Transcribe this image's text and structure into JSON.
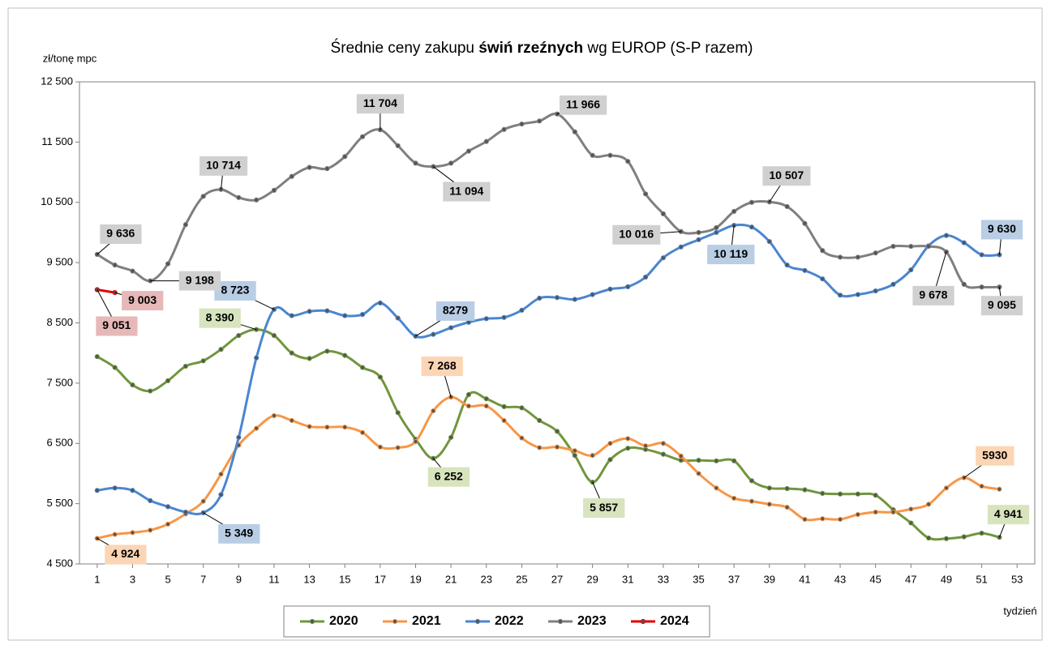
{
  "chart_data": {
    "type": "line",
    "title_parts": [
      {
        "text": "Średnie ceny zakupu ",
        "bold": false
      },
      {
        "text": "świń rzeźnych",
        "bold": true
      },
      {
        "text": " wg EUROP (S-P razem)",
        "bold": false
      }
    ],
    "y_label": "zł/tonę mpc",
    "x_label": "tydzień",
    "x": [
      1,
      2,
      3,
      4,
      5,
      6,
      7,
      8,
      9,
      10,
      11,
      12,
      13,
      14,
      15,
      16,
      17,
      18,
      19,
      20,
      21,
      22,
      23,
      24,
      25,
      26,
      27,
      28,
      29,
      30,
      31,
      32,
      33,
      34,
      35,
      36,
      37,
      38,
      39,
      40,
      41,
      42,
      43,
      44,
      45,
      46,
      47,
      48,
      49,
      50,
      51,
      52
    ],
    "xlim": [
      0,
      54
    ],
    "xticks": [
      1,
      3,
      5,
      7,
      9,
      11,
      13,
      15,
      17,
      19,
      21,
      23,
      25,
      27,
      29,
      31,
      33,
      35,
      37,
      39,
      41,
      43,
      45,
      47,
      49,
      51,
      53
    ],
    "ylim": [
      4500,
      12500
    ],
    "yticks": [
      {
        "value": 4500,
        "label": "4 500"
      },
      {
        "value": 5500,
        "label": "5 500"
      },
      {
        "value": 6500,
        "label": "6 500"
      },
      {
        "value": 7500,
        "label": "7 500"
      },
      {
        "value": 8500,
        "label": "8 500"
      },
      {
        "value": 9500,
        "label": "9 500"
      },
      {
        "value": 10500,
        "label": "10 500"
      },
      {
        "value": 11500,
        "label": "11 500"
      },
      {
        "value": 12500,
        "label": "12 500"
      }
    ],
    "grid": false,
    "legend": "bottom",
    "series": [
      {
        "name": "2020",
        "color": "#70963c",
        "label_color": "#d7e4bd",
        "values": [
          7940,
          7760,
          7470,
          7370,
          7540,
          7780,
          7870,
          8060,
          8290,
          8390,
          8290,
          8000,
          7910,
          8030,
          7960,
          7760,
          7600,
          7010,
          6570,
          6252,
          6600,
          7310,
          7240,
          7110,
          7090,
          6880,
          6700,
          6300,
          5857,
          6230,
          6420,
          6400,
          6320,
          6220,
          6220,
          6210,
          6210,
          5880,
          5760,
          5750,
          5730,
          5670,
          5660,
          5660,
          5640,
          5400,
          5180,
          4930,
          4920,
          4950,
          5010,
          4941
        ],
        "value_labels": [
          null,
          null,
          null,
          null,
          null,
          null,
          null,
          null,
          null,
          "8 390",
          null,
          null,
          null,
          null,
          null,
          null,
          null,
          null,
          null,
          "6 252",
          null,
          null,
          null,
          null,
          null,
          null,
          null,
          null,
          "5 857",
          null,
          null,
          null,
          null,
          null,
          null,
          null,
          null,
          null,
          null,
          null,
          null,
          null,
          null,
          null,
          null,
          null,
          null,
          null,
          null,
          null,
          null,
          "4 941"
        ]
      },
      {
        "name": "2021",
        "color": "#f79646",
        "label_color": "#fcd5b5",
        "values": [
          4924,
          4990,
          5020,
          5060,
          5160,
          5330,
          5540,
          5990,
          6470,
          6750,
          6960,
          6880,
          6780,
          6770,
          6770,
          6680,
          6440,
          6430,
          6530,
          7040,
          7268,
          7120,
          7120,
          6880,
          6590,
          6430,
          6440,
          6380,
          6300,
          6500,
          6580,
          6460,
          6500,
          6290,
          6000,
          5760,
          5590,
          5540,
          5490,
          5440,
          5240,
          5250,
          5240,
          5320,
          5360,
          5360,
          5410,
          5490,
          5760,
          5930,
          5790,
          5740
        ],
        "value_labels": [
          "4 924",
          null,
          null,
          null,
          null,
          null,
          null,
          null,
          null,
          null,
          null,
          null,
          null,
          null,
          null,
          null,
          null,
          null,
          null,
          null,
          "7 268",
          null,
          null,
          null,
          null,
          null,
          null,
          null,
          null,
          null,
          null,
          null,
          null,
          null,
          null,
          null,
          null,
          null,
          null,
          null,
          null,
          null,
          null,
          null,
          null,
          null,
          null,
          null,
          null,
          "5930",
          null,
          null
        ]
      },
      {
        "name": "2022",
        "color": "#4a86d0",
        "label_color": "#b9cde5",
        "values": [
          5720,
          5760,
          5720,
          5550,
          5450,
          5360,
          5349,
          5650,
          6600,
          7920,
          8723,
          8620,
          8690,
          8700,
          8620,
          8640,
          8830,
          8580,
          8279,
          8310,
          8420,
          8510,
          8570,
          8590,
          8710,
          8910,
          8920,
          8890,
          8970,
          9060,
          9100,
          9260,
          9580,
          9760,
          9880,
          10000,
          10119,
          10090,
          9850,
          9460,
          9370,
          9230,
          8960,
          8970,
          9030,
          9140,
          9380,
          9780,
          9950,
          9830,
          9630,
          9630
        ],
        "value_labels": [
          null,
          null,
          null,
          null,
          null,
          null,
          "5 349",
          null,
          null,
          null,
          "8 723",
          null,
          null,
          null,
          null,
          null,
          null,
          null,
          "8279",
          null,
          null,
          null,
          null,
          null,
          null,
          null,
          null,
          null,
          null,
          null,
          null,
          null,
          null,
          null,
          null,
          null,
          "10 119",
          null,
          null,
          null,
          null,
          null,
          null,
          null,
          null,
          null,
          null,
          null,
          null,
          null,
          null,
          "9 630"
        ]
      },
      {
        "name": "2023",
        "color": "#7f7f7f",
        "label_color": "#d0d0d0",
        "values": [
          9636,
          9460,
          9360,
          9198,
          9480,
          10130,
          10600,
          10714,
          10580,
          10540,
          10700,
          10930,
          11080,
          11060,
          11260,
          11590,
          11704,
          11440,
          11150,
          11094,
          11150,
          11350,
          11510,
          11710,
          11800,
          11850,
          11966,
          11670,
          11280,
          11280,
          11180,
          10640,
          10310,
          10016,
          10000,
          10080,
          10350,
          10500,
          10507,
          10430,
          10150,
          9700,
          9590,
          9590,
          9660,
          9770,
          9770,
          9770,
          9678,
          9140,
          9095,
          9095
        ],
        "value_labels": [
          "9 636",
          null,
          null,
          "9 198",
          null,
          null,
          null,
          "10 714",
          null,
          null,
          null,
          null,
          null,
          null,
          null,
          null,
          "11 704",
          null,
          null,
          "11 094",
          null,
          null,
          null,
          null,
          null,
          null,
          "11 966",
          null,
          null,
          null,
          null,
          null,
          null,
          "10 016",
          null,
          null,
          null,
          null,
          "10 507",
          null,
          null,
          null,
          null,
          null,
          null,
          null,
          null,
          null,
          "9 678",
          null,
          null,
          "9 095"
        ]
      },
      {
        "name": "2024",
        "color": "#e00000",
        "label_color": "#e6b9b8",
        "values": [
          9051,
          9003,
          null,
          null,
          null,
          null,
          null,
          null,
          null,
          null,
          null,
          null,
          null,
          null,
          null,
          null,
          null,
          null,
          null,
          null,
          null,
          null,
          null,
          null,
          null,
          null,
          null,
          null,
          null,
          null,
          null,
          null,
          null,
          null,
          null,
          null,
          null,
          null,
          null,
          null,
          null,
          null,
          null,
          null,
          null,
          null,
          null,
          null,
          null,
          null,
          null,
          null
        ],
        "value_labels": [
          "9 051",
          "9 003",
          null,
          null,
          null,
          null,
          null,
          null,
          null,
          null,
          null,
          null,
          null,
          null,
          null,
          null,
          null,
          null,
          null,
          null,
          null,
          null,
          null,
          null,
          null,
          null,
          null,
          null,
          null,
          null,
          null,
          null,
          null,
          null,
          null,
          null,
          null,
          null,
          null,
          null,
          null,
          null,
          null,
          null,
          null,
          null,
          null,
          null,
          null,
          null,
          null,
          null
        ]
      }
    ]
  }
}
